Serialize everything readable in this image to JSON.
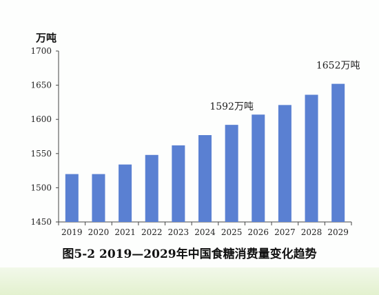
{
  "chart_data": {
    "type": "bar",
    "caption": "图5-2  2019—2029年中国食糖消费量变化趋势",
    "unit": "万吨",
    "categories": [
      "2019",
      "2020",
      "2021",
      "2022",
      "2023",
      "2024",
      "2025",
      "2026",
      "2027",
      "2028",
      "2029"
    ],
    "values": [
      1520,
      1520,
      1534,
      1548,
      1562,
      1577,
      1592,
      1607,
      1621,
      1636,
      1652
    ],
    "yticks": [
      1450,
      1500,
      1550,
      1600,
      1650,
      1700
    ],
    "ylim": [
      1450,
      1700
    ],
    "annotations": [
      {
        "category": "2025",
        "text": "1592万吨"
      },
      {
        "category": "2029",
        "text": "1652万吨"
      }
    ],
    "bar_color": "#5a80d2",
    "grid": false,
    "legend": "none"
  }
}
